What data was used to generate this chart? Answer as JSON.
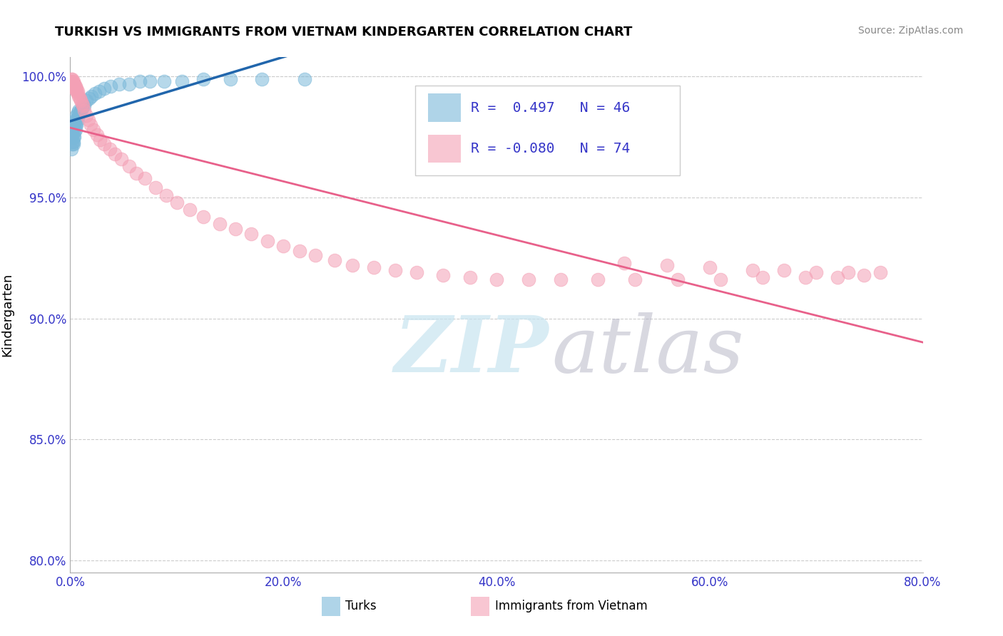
{
  "title": "TURKISH VS IMMIGRANTS FROM VIETNAM KINDERGARTEN CORRELATION CHART",
  "source": "Source: ZipAtlas.com",
  "ylabel": "Kindergarten",
  "x_min": 0.0,
  "x_max": 0.8,
  "y_min": 0.795,
  "y_max": 1.008,
  "yticks": [
    0.8,
    0.85,
    0.9,
    0.95,
    1.0
  ],
  "ytick_labels": [
    "80.0%",
    "85.0%",
    "90.0%",
    "95.0%",
    "100.0%"
  ],
  "xticks": [
    0.0,
    0.2,
    0.4,
    0.6,
    0.8
  ],
  "xtick_labels": [
    "0.0%",
    "20.0%",
    "40.0%",
    "60.0%",
    "80.0%"
  ],
  "blue_color": "#7ab8d9",
  "pink_color": "#f4a0b5",
  "blue_line_color": "#2166ac",
  "pink_line_color": "#e8608a",
  "R_blue": 0.497,
  "N_blue": 46,
  "R_pink": -0.08,
  "N_pink": 74,
  "legend_text_color": "#3535c8",
  "axis_tick_color": "#3535c8",
  "blue_x": [
    0.001,
    0.001,
    0.002,
    0.002,
    0.002,
    0.002,
    0.003,
    0.003,
    0.003,
    0.003,
    0.003,
    0.004,
    0.004,
    0.004,
    0.005,
    0.005,
    0.005,
    0.006,
    0.006,
    0.006,
    0.007,
    0.007,
    0.008,
    0.008,
    0.009,
    0.01,
    0.011,
    0.012,
    0.013,
    0.015,
    0.018,
    0.02,
    0.023,
    0.027,
    0.032,
    0.038,
    0.046,
    0.055,
    0.065,
    0.075,
    0.088,
    0.105,
    0.125,
    0.15,
    0.18,
    0.22
  ],
  "blue_y": [
    0.97,
    0.975,
    0.972,
    0.973,
    0.975,
    0.978,
    0.972,
    0.973,
    0.975,
    0.978,
    0.98,
    0.975,
    0.977,
    0.98,
    0.978,
    0.98,
    0.982,
    0.98,
    0.982,
    0.984,
    0.982,
    0.985,
    0.984,
    0.986,
    0.985,
    0.986,
    0.987,
    0.988,
    0.988,
    0.99,
    0.991,
    0.992,
    0.993,
    0.994,
    0.995,
    0.996,
    0.997,
    0.997,
    0.998,
    0.998,
    0.998,
    0.998,
    0.999,
    0.999,
    0.999,
    0.999
  ],
  "pink_x": [
    0.001,
    0.001,
    0.002,
    0.002,
    0.002,
    0.003,
    0.003,
    0.003,
    0.004,
    0.004,
    0.004,
    0.005,
    0.005,
    0.006,
    0.006,
    0.007,
    0.007,
    0.008,
    0.009,
    0.01,
    0.011,
    0.012,
    0.013,
    0.015,
    0.017,
    0.019,
    0.022,
    0.025,
    0.028,
    0.032,
    0.037,
    0.042,
    0.048,
    0.055,
    0.062,
    0.07,
    0.08,
    0.09,
    0.1,
    0.112,
    0.125,
    0.14,
    0.155,
    0.17,
    0.185,
    0.2,
    0.215,
    0.23,
    0.248,
    0.265,
    0.285,
    0.305,
    0.325,
    0.35,
    0.375,
    0.4,
    0.43,
    0.46,
    0.495,
    0.53,
    0.57,
    0.61,
    0.65,
    0.69,
    0.72,
    0.745,
    0.76,
    0.73,
    0.7,
    0.67,
    0.64,
    0.6,
    0.56,
    0.52
  ],
  "pink_y": [
    0.998,
    0.999,
    0.998,
    0.997,
    0.999,
    0.997,
    0.998,
    0.996,
    0.997,
    0.995,
    0.997,
    0.995,
    0.996,
    0.994,
    0.995,
    0.993,
    0.994,
    0.992,
    0.991,
    0.99,
    0.989,
    0.988,
    0.986,
    0.984,
    0.982,
    0.98,
    0.978,
    0.976,
    0.974,
    0.972,
    0.97,
    0.968,
    0.966,
    0.963,
    0.96,
    0.958,
    0.954,
    0.951,
    0.948,
    0.945,
    0.942,
    0.939,
    0.937,
    0.935,
    0.932,
    0.93,
    0.928,
    0.926,
    0.924,
    0.922,
    0.921,
    0.92,
    0.919,
    0.918,
    0.917,
    0.916,
    0.916,
    0.916,
    0.916,
    0.916,
    0.916,
    0.916,
    0.917,
    0.917,
    0.917,
    0.918,
    0.919,
    0.919,
    0.919,
    0.92,
    0.92,
    0.921,
    0.922,
    0.923
  ],
  "grid_color": "#cccccc",
  "dotted_line_color": "#cccccc"
}
